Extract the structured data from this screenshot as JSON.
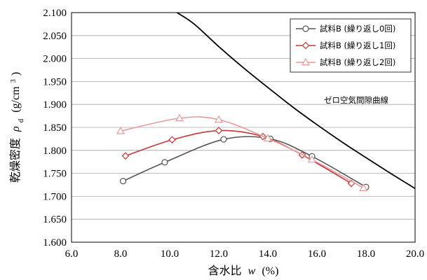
{
  "chart_data": {
    "type": "line",
    "xlim": [
      6.0,
      20.0
    ],
    "ylim": [
      1.6,
      2.1
    ],
    "x_ticks": [
      "6.0",
      "8.0",
      "10.0",
      "12.0",
      "14.0",
      "16.0",
      "18.0",
      "20.0"
    ],
    "y_ticks": [
      "1.600",
      "1.650",
      "1.700",
      "1.750",
      "1.800",
      "1.850",
      "1.900",
      "1.950",
      "2.000",
      "2.050",
      "2.100"
    ],
    "xlabel": {
      "main": "含水比",
      "var": "w",
      "unit": "(%)"
    },
    "ylabel": {
      "main": "乾燥密度",
      "var": "ρ",
      "sub": "d",
      "unit_pre": "(g/cm",
      "sup": "3",
      "unit_post": ")"
    },
    "grid": "horizontal",
    "legend_position": "top-right",
    "series": [
      {
        "name": "試料B (繰り返し0回)",
        "color": "#555555",
        "marker": "circle",
        "x": [
          8.1,
          9.8,
          12.2,
          14.1,
          15.8,
          18.0
        ],
        "y": [
          1.733,
          1.774,
          1.824,
          1.825,
          1.787,
          1.72
        ]
      },
      {
        "name": "試料B (繰り返し1回)",
        "color": "#c0393b",
        "marker": "diamond",
        "x": [
          8.2,
          10.1,
          12.0,
          13.8,
          15.4,
          17.4
        ],
        "y": [
          1.788,
          1.823,
          1.843,
          1.83,
          1.79,
          1.728
        ]
      },
      {
        "name": "試料B (繰り返し2回)",
        "color": "#e8999a",
        "marker": "triangle",
        "x": [
          8.0,
          10.4,
          12.0,
          14.0,
          15.8,
          17.9
        ],
        "y": [
          1.842,
          1.87,
          1.867,
          1.826,
          1.78,
          1.718
        ]
      }
    ],
    "zero_air_voids_curve": {
      "label": "ゼロ空気間隙曲線",
      "color": "#000000",
      "x": [
        10.3,
        11.0,
        12.0,
        13.0,
        14.0,
        15.0,
        16.0,
        17.0,
        18.0,
        19.0,
        20.0
      ],
      "y": [
        2.1,
        2.075,
        2.026,
        1.98,
        1.937,
        1.895,
        1.856,
        1.819,
        1.784,
        1.75,
        1.717
      ]
    }
  }
}
